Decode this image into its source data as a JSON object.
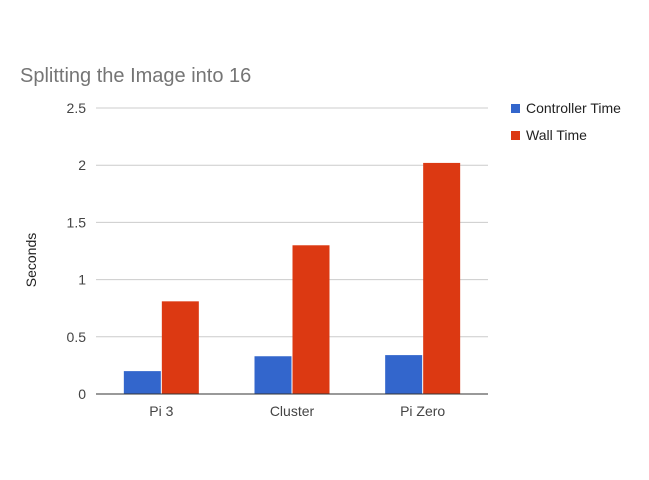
{
  "chart_data": {
    "type": "bar",
    "title": "Splitting the Image into 16",
    "xlabel": "",
    "ylabel": "Seconds",
    "categories": [
      "Pi 3",
      "Cluster",
      "Pi Zero"
    ],
    "series": [
      {
        "name": "Controller Time",
        "color": "#3366cc",
        "values": [
          0.2,
          0.33,
          0.34
        ]
      },
      {
        "name": "Wall Time",
        "color": "#dc3912",
        "values": [
          0.81,
          1.3,
          2.02
        ]
      }
    ],
    "ylim": [
      0,
      2.5
    ],
    "yticks": [
      "0",
      "0.5",
      "1",
      "1.5",
      "2",
      "2.5"
    ],
    "grid": true,
    "legend_position": "right"
  }
}
